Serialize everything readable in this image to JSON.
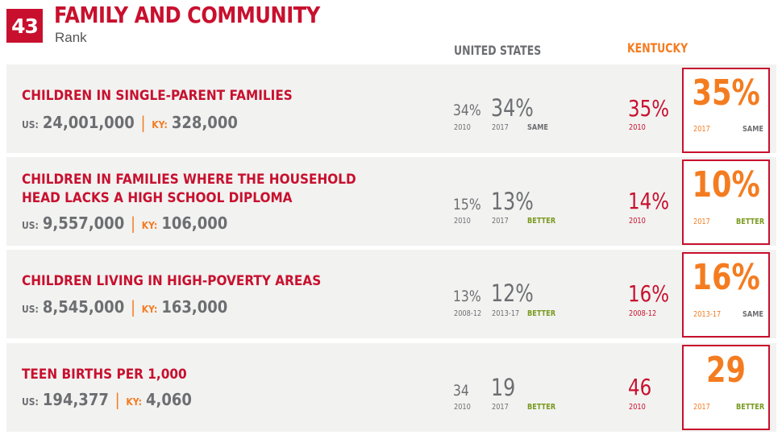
{
  "header": {
    "rank": "43",
    "title": "FAMILY AND COMMUNITY",
    "subtitle": "Rank"
  },
  "columns": {
    "us": "UNITED STATES",
    "ky": "KENTUCKY"
  },
  "colors": {
    "accent_red": "#c8102e",
    "accent_orange": "#f47c20",
    "gray_text": "#6d6e71",
    "better_green": "#7a9a1f",
    "row_bg": "#f2f2f1"
  },
  "rows": [
    {
      "title_line1": "CHILDREN IN SINGLE-PARENT FAMILIES",
      "title_line2": "",
      "us_label": "US:",
      "us_count": "24,001,000",
      "sep": "|",
      "ky_label": "KY:",
      "ky_count": "328,000",
      "us_old": "34%",
      "us_old_year": "2010",
      "us_new": "34%",
      "us_new_year": "2017",
      "us_trend": "SAME",
      "ky_old": "35%",
      "ky_old_year": "2010",
      "ky_new": "35%",
      "ky_new_year": "2017",
      "ky_trend": "SAME"
    },
    {
      "title_line1": "CHILDREN IN FAMILIES WHERE THE HOUSEHOLD",
      "title_line2": "HEAD LACKS A HIGH SCHOOL DIPLOMA",
      "us_label": "US:",
      "us_count": "9,557,000",
      "sep": "|",
      "ky_label": "KY:",
      "ky_count": "106,000",
      "us_old": "15%",
      "us_old_year": "2010",
      "us_new": "13%",
      "us_new_year": "2017",
      "us_trend": "BETTER",
      "ky_old": "14%",
      "ky_old_year": "2010",
      "ky_new": "10%",
      "ky_new_year": "2017",
      "ky_trend": "BETTER"
    },
    {
      "title_line1": "CHILDREN LIVING IN HIGH-POVERTY AREAS",
      "title_line2": "",
      "us_label": "US:",
      "us_count": "8,545,000",
      "sep": "|",
      "ky_label": "KY:",
      "ky_count": "163,000",
      "us_old": "13%",
      "us_old_year": "2008-12",
      "us_new": "12%",
      "us_new_year": "2013-17",
      "us_trend": "BETTER",
      "ky_old": "16%",
      "ky_old_year": "2008-12",
      "ky_new": "16%",
      "ky_new_year": "2013-17",
      "ky_trend": "SAME"
    },
    {
      "title_line1": "TEEN BIRTHS PER 1,000",
      "title_line2": "",
      "us_label": "US:",
      "us_count": "194,377",
      "sep": "|",
      "ky_label": "KY:",
      "ky_count": "4,060",
      "us_old": "34",
      "us_old_year": "2010",
      "us_new": "19",
      "us_new_year": "2017",
      "us_trend": "BETTER",
      "ky_old": "46",
      "ky_old_year": "2010",
      "ky_new": "29",
      "ky_new_year": "2017",
      "ky_trend": "BETTER"
    }
  ]
}
